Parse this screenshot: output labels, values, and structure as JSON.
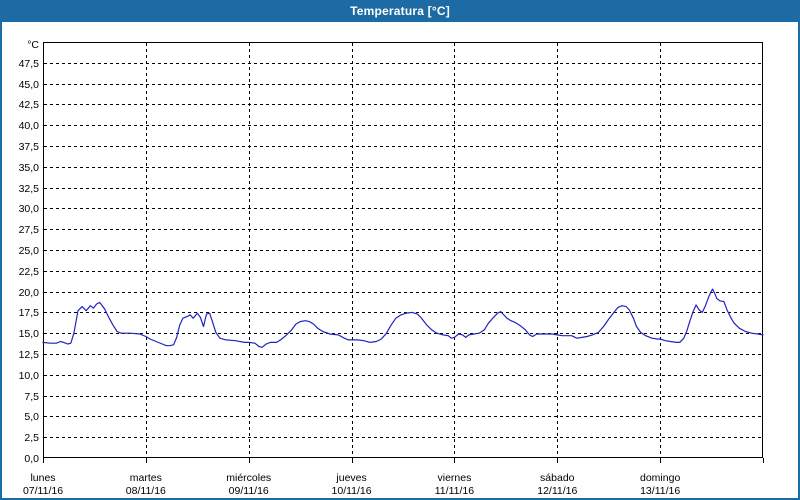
{
  "window": {
    "title": "Temperatura [°C]"
  },
  "colors": {
    "header_bg": "#1c6ba4",
    "window_border": "#1c6ba4",
    "page_bg": "#fdfefd",
    "plot_bg": "#fefffe",
    "grid": "#000000",
    "axis_text": "#000000",
    "title_text": "#ffffff",
    "line": "#2323be"
  },
  "chart_data": {
    "type": "line",
    "title": "Temperatura [°C]",
    "ylabel": "°C",
    "xlabel": "",
    "ylim": [
      0,
      50
    ],
    "y_step": 2.5,
    "grid": "dashed",
    "legend_position": "none",
    "y_axis": {
      "unit": "°C",
      "tick_labels_top_to_bottom": [
        "47,5",
        "45,0",
        "42,5",
        "40,0",
        "37,5",
        "35,0",
        "32,5",
        "30,0",
        "27,5",
        "25,0",
        "22,5",
        "20,0",
        "17,5",
        "15,0",
        "12,5",
        "10,0",
        "7,5",
        "5,0",
        "2,5",
        "0,0"
      ]
    },
    "x_axis": {
      "unit": "day",
      "days": [
        {
          "name": "lunes",
          "date": "07/11/16"
        },
        {
          "name": "martes",
          "date": "08/11/16"
        },
        {
          "name": "miércoles",
          "date": "09/11/16"
        },
        {
          "name": "jueves",
          "date": "10/11/16"
        },
        {
          "name": "viernes",
          "date": "11/11/16"
        },
        {
          "name": "sábado",
          "date": "12/11/16"
        },
        {
          "name": "domingo",
          "date": "13/11/16"
        }
      ]
    },
    "series": [
      {
        "name": "Temperatura",
        "color": "#2323be",
        "points": [
          [
            0.0,
            13.9
          ],
          [
            0.07,
            13.8
          ],
          [
            0.13,
            13.8
          ],
          [
            0.17,
            14.0
          ],
          [
            0.2,
            13.9
          ],
          [
            0.24,
            13.7
          ],
          [
            0.27,
            13.8
          ],
          [
            0.3,
            15.0
          ],
          [
            0.34,
            17.7
          ],
          [
            0.38,
            18.2
          ],
          [
            0.42,
            17.7
          ],
          [
            0.46,
            18.3
          ],
          [
            0.49,
            18.0
          ],
          [
            0.52,
            18.5
          ],
          [
            0.55,
            18.7
          ],
          [
            0.57,
            18.4
          ],
          [
            0.6,
            17.9
          ],
          [
            0.64,
            16.9
          ],
          [
            0.68,
            16.0
          ],
          [
            0.72,
            15.2
          ],
          [
            0.76,
            15.0
          ],
          [
            0.85,
            15.0
          ],
          [
            0.94,
            14.9
          ],
          [
            1.0,
            14.6
          ],
          [
            1.04,
            14.3
          ],
          [
            1.1,
            14.0
          ],
          [
            1.16,
            13.7
          ],
          [
            1.2,
            13.5
          ],
          [
            1.23,
            13.5
          ],
          [
            1.27,
            13.6
          ],
          [
            1.3,
            14.5
          ],
          [
            1.33,
            16.0
          ],
          [
            1.36,
            16.8
          ],
          [
            1.4,
            17.0
          ],
          [
            1.43,
            17.2
          ],
          [
            1.46,
            16.8
          ],
          [
            1.5,
            17.4
          ],
          [
            1.53,
            16.9
          ],
          [
            1.56,
            15.8
          ],
          [
            1.59,
            17.3
          ],
          [
            1.62,
            17.4
          ],
          [
            1.65,
            16.3
          ],
          [
            1.68,
            15.1
          ],
          [
            1.72,
            14.4
          ],
          [
            1.78,
            14.2
          ],
          [
            1.87,
            14.1
          ],
          [
            1.96,
            13.9
          ],
          [
            2.0,
            13.9
          ],
          [
            2.06,
            13.8
          ],
          [
            2.1,
            13.4
          ],
          [
            2.13,
            13.3
          ],
          [
            2.17,
            13.7
          ],
          [
            2.21,
            13.9
          ],
          [
            2.27,
            13.9
          ],
          [
            2.31,
            14.2
          ],
          [
            2.36,
            14.7
          ],
          [
            2.41,
            15.3
          ],
          [
            2.46,
            16.1
          ],
          [
            2.5,
            16.4
          ],
          [
            2.55,
            16.5
          ],
          [
            2.59,
            16.4
          ],
          [
            2.63,
            16.1
          ],
          [
            2.67,
            15.6
          ],
          [
            2.72,
            15.2
          ],
          [
            2.79,
            14.9
          ],
          [
            2.87,
            14.8
          ],
          [
            2.93,
            14.4
          ],
          [
            2.97,
            14.2
          ],
          [
            3.0,
            14.2
          ],
          [
            3.06,
            14.2
          ],
          [
            3.12,
            14.1
          ],
          [
            3.18,
            13.9
          ],
          [
            3.24,
            14.0
          ],
          [
            3.29,
            14.3
          ],
          [
            3.34,
            15.0
          ],
          [
            3.38,
            15.9
          ],
          [
            3.43,
            16.8
          ],
          [
            3.48,
            17.2
          ],
          [
            3.53,
            17.4
          ],
          [
            3.59,
            17.5
          ],
          [
            3.64,
            17.3
          ],
          [
            3.68,
            16.8
          ],
          [
            3.73,
            16.0
          ],
          [
            3.78,
            15.4
          ],
          [
            3.83,
            15.0
          ],
          [
            3.89,
            14.8
          ],
          [
            3.94,
            14.7
          ],
          [
            3.97,
            14.4
          ],
          [
            4.0,
            14.5
          ],
          [
            4.04,
            14.9
          ],
          [
            4.08,
            14.8
          ],
          [
            4.11,
            14.5
          ],
          [
            4.14,
            14.8
          ],
          [
            4.19,
            14.9
          ],
          [
            4.24,
            15.0
          ],
          [
            4.29,
            15.4
          ],
          [
            4.33,
            16.2
          ],
          [
            4.38,
            16.9
          ],
          [
            4.42,
            17.4
          ],
          [
            4.45,
            17.6
          ],
          [
            4.48,
            17.2
          ],
          [
            4.51,
            16.8
          ],
          [
            4.55,
            16.5
          ],
          [
            4.59,
            16.3
          ],
          [
            4.64,
            15.9
          ],
          [
            4.69,
            15.4
          ],
          [
            4.73,
            14.8
          ],
          [
            4.76,
            14.6
          ],
          [
            4.8,
            14.9
          ],
          [
            4.88,
            14.9
          ],
          [
            4.95,
            14.9
          ],
          [
            5.0,
            14.8
          ],
          [
            5.05,
            14.7
          ],
          [
            5.1,
            14.7
          ],
          [
            5.14,
            14.7
          ],
          [
            5.19,
            14.4
          ],
          [
            5.24,
            14.5
          ],
          [
            5.29,
            14.6
          ],
          [
            5.34,
            14.8
          ],
          [
            5.4,
            15.1
          ],
          [
            5.45,
            15.8
          ],
          [
            5.5,
            16.7
          ],
          [
            5.55,
            17.5
          ],
          [
            5.59,
            18.1
          ],
          [
            5.63,
            18.3
          ],
          [
            5.67,
            18.2
          ],
          [
            5.7,
            17.8
          ],
          [
            5.74,
            16.8
          ],
          [
            5.77,
            15.8
          ],
          [
            5.81,
            15.1
          ],
          [
            5.86,
            14.7
          ],
          [
            5.92,
            14.4
          ],
          [
            5.97,
            14.3
          ],
          [
            6.0,
            14.3
          ],
          [
            6.05,
            14.1
          ],
          [
            6.1,
            14.0
          ],
          [
            6.16,
            13.9
          ],
          [
            6.19,
            13.9
          ],
          [
            6.23,
            14.4
          ],
          [
            6.26,
            15.3
          ],
          [
            6.29,
            16.5
          ],
          [
            6.32,
            17.6
          ],
          [
            6.35,
            18.4
          ],
          [
            6.38,
            17.8
          ],
          [
            6.41,
            17.5
          ],
          [
            6.44,
            18.3
          ],
          [
            6.47,
            19.3
          ],
          [
            6.5,
            20.1
          ],
          [
            6.51,
            20.3
          ],
          [
            6.53,
            19.8
          ],
          [
            6.55,
            19.2
          ],
          [
            6.58,
            18.9
          ],
          [
            6.62,
            18.8
          ],
          [
            6.65,
            17.8
          ],
          [
            6.69,
            16.8
          ],
          [
            6.72,
            16.2
          ],
          [
            6.77,
            15.6
          ],
          [
            6.83,
            15.2
          ],
          [
            6.89,
            15.0
          ],
          [
            6.95,
            14.9
          ],
          [
            7.0,
            14.8
          ]
        ]
      }
    ]
  }
}
